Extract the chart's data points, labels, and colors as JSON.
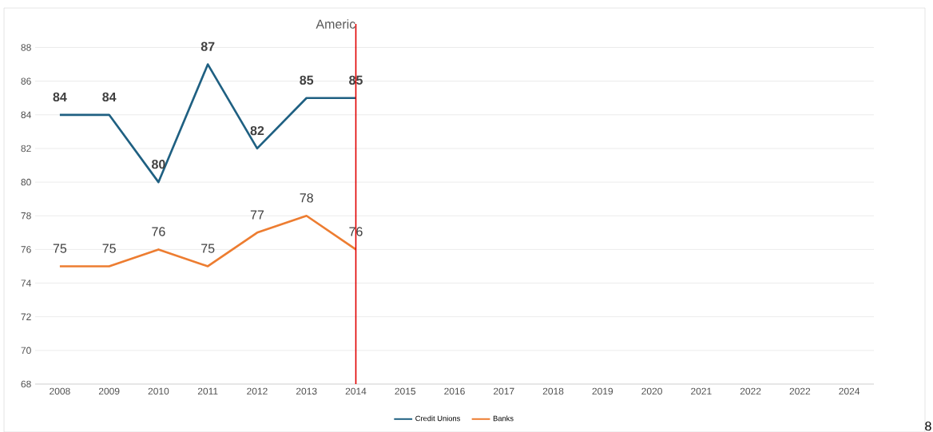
{
  "chart_data": {
    "type": "line",
    "title": "Americ",
    "categories": [
      "2008",
      "2009",
      "2010",
      "2011",
      "2012",
      "2013",
      "2014",
      "2015",
      "2016",
      "2017",
      "2018",
      "2019",
      "2020",
      "2021",
      "2022",
      "2022",
      "2024"
    ],
    "series": [
      {
        "name": "Credit Unions",
        "color": "#1f6082",
        "values": [
          84,
          84,
          80,
          87,
          82,
          85,
          85,
          null,
          null,
          null,
          null,
          null,
          null,
          null,
          null,
          null,
          null
        ]
      },
      {
        "name": "Banks",
        "color": "#ed7d31",
        "values": [
          75,
          75,
          76,
          75,
          77,
          78,
          76,
          null,
          null,
          null,
          null,
          null,
          null,
          null,
          null,
          null,
          null
        ]
      }
    ],
    "ylim": [
      68,
      89.4
    ],
    "yticks": [
      68,
      70,
      72,
      74,
      76,
      78,
      80,
      82,
      84,
      86,
      88
    ],
    "grid": "y",
    "legend": "bottom",
    "data_labels": true,
    "marker": "none",
    "line_style": "solid",
    "ref_lines": [
      {
        "axis": "x",
        "value": "2014",
        "color": "#e00000"
      }
    ],
    "annotations": [
      "8"
    ]
  }
}
